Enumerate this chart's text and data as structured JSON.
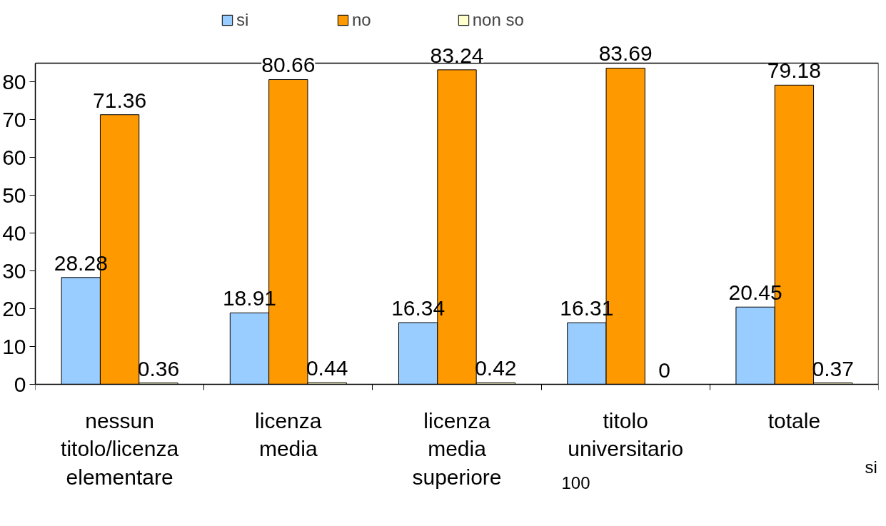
{
  "chart_data": {
    "type": "bar",
    "categories": [
      "nessun titolo/licenza elementare",
      "licenza media",
      "licenza media superiore",
      "titolo universitario",
      "totale"
    ],
    "series": [
      {
        "name": "si",
        "color": "#99ccff",
        "values": [
          28.28,
          18.91,
          16.34,
          16.31,
          20.45
        ]
      },
      {
        "name": "no",
        "color": "#ff9900",
        "values": [
          71.36,
          80.66,
          83.24,
          83.69,
          79.18
        ]
      },
      {
        "name": "non so",
        "color": "#ffffcc",
        "values": [
          0.36,
          0.44,
          0.42,
          0,
          0.37
        ]
      }
    ],
    "ylim": [
      0,
      85
    ],
    "yticks": [
      0,
      10,
      20,
      30,
      40,
      50,
      60,
      70,
      80
    ],
    "data_labels": true,
    "grid": false,
    "legend": "top",
    "annotations": [
      "si",
      "100"
    ]
  }
}
